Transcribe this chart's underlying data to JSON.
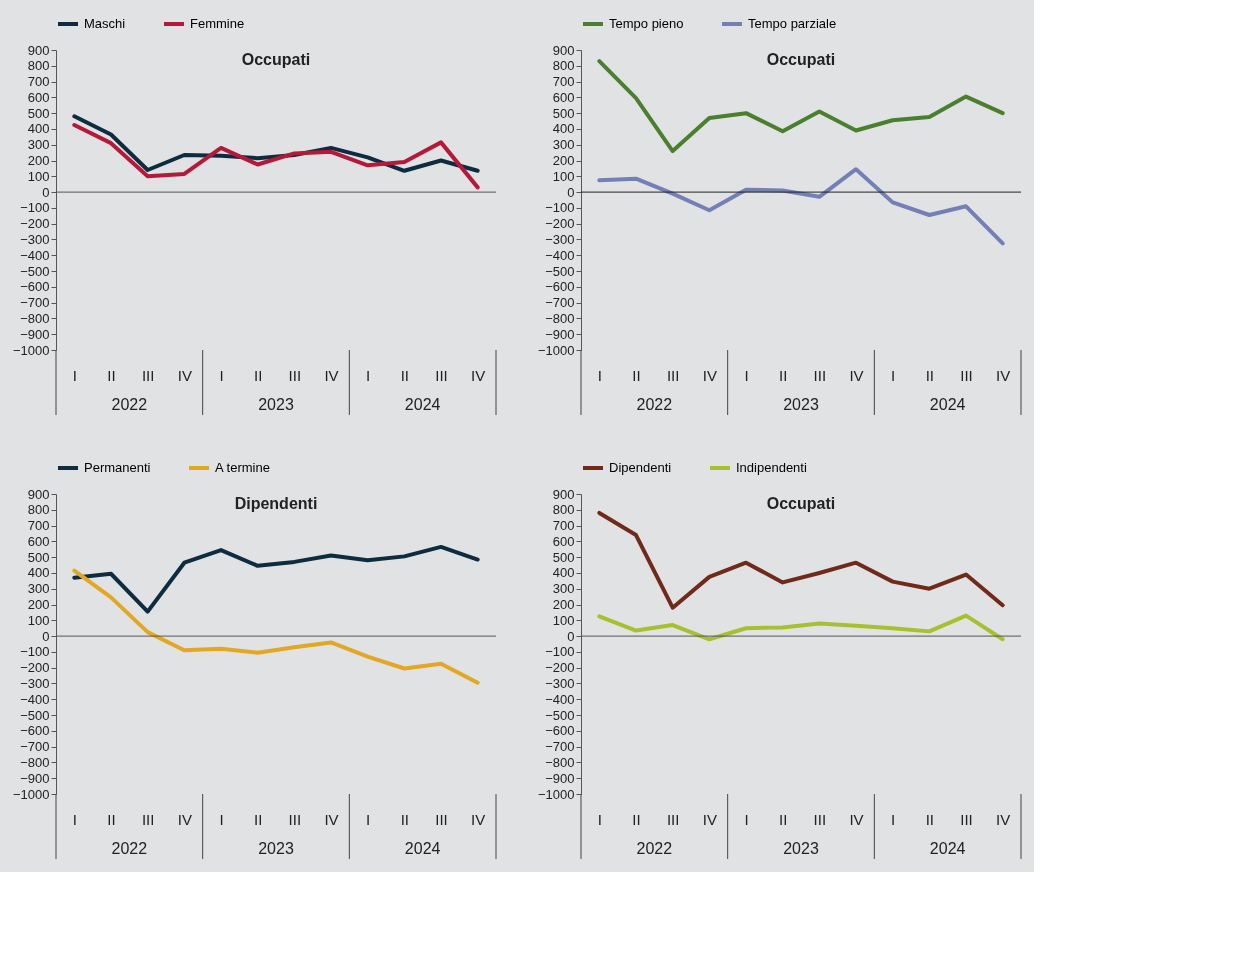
{
  "chart_data": [
    {
      "type": "line",
      "title": "Occupati",
      "categories": [
        "I",
        "II",
        "III",
        "IV",
        "I",
        "II",
        "III",
        "IV",
        "I",
        "II",
        "III",
        "IV"
      ],
      "annotations": [
        "2022",
        "2023",
        "2024"
      ],
      "ylim": [
        -1000,
        900
      ],
      "yticks": [
        -1000,
        -900,
        -800,
        -700,
        -600,
        -500,
        -400,
        -300,
        -200,
        -100,
        0,
        100,
        200,
        300,
        400,
        500,
        600,
        700,
        800,
        900
      ],
      "legend": "top",
      "grid": false,
      "ref_lines": [
        {
          "axis": "y",
          "value": 0,
          "color": "#555555"
        }
      ],
      "series": [
        {
          "name": "Maschi",
          "color": "#0d2c40",
          "values": [
            480,
            365,
            140,
            235,
            230,
            215,
            235,
            280,
            220,
            135,
            200,
            135
          ]
        },
        {
          "name": "Femmine",
          "color": "#b5193a",
          "values": [
            425,
            310,
            100,
            115,
            280,
            175,
            245,
            255,
            170,
            190,
            315,
            30
          ]
        }
      ]
    },
    {
      "type": "line",
      "title": "Occupati",
      "categories": [
        "I",
        "II",
        "III",
        "IV",
        "I",
        "II",
        "III",
        "IV",
        "I",
        "II",
        "III",
        "IV"
      ],
      "annotations": [
        "2022",
        "2023",
        "2024"
      ],
      "ylim": [
        -1000,
        900
      ],
      "yticks": [
        -1000,
        -900,
        -800,
        -700,
        -600,
        -500,
        -400,
        -300,
        -200,
        -100,
        0,
        100,
        200,
        300,
        400,
        500,
        600,
        700,
        800,
        900
      ],
      "legend": "top",
      "grid": false,
      "ref_lines": [
        {
          "axis": "y",
          "value": 0,
          "color": "#222222"
        }
      ],
      "series": [
        {
          "name": "Tempo pieno",
          "color": "#4a7f2e",
          "values": [
            830,
            595,
            260,
            470,
            500,
            385,
            510,
            390,
            455,
            475,
            605,
            500
          ]
        },
        {
          "name": "Tempo parziale",
          "color": "#7380b5",
          "values": [
            75,
            85,
            -10,
            -115,
            15,
            10,
            -30,
            145,
            -65,
            -145,
            -90,
            -325
          ]
        }
      ]
    },
    {
      "type": "line",
      "title": "Dipendenti",
      "categories": [
        "I",
        "II",
        "III",
        "IV",
        "I",
        "II",
        "III",
        "IV",
        "I",
        "II",
        "III",
        "IV"
      ],
      "annotations": [
        "2022",
        "2023",
        "2024"
      ],
      "ylim": [
        -1000,
        900
      ],
      "yticks": [
        -1000,
        -900,
        -800,
        -700,
        -600,
        -500,
        -400,
        -300,
        -200,
        -100,
        0,
        100,
        200,
        300,
        400,
        500,
        600,
        700,
        800,
        900
      ],
      "legend": "top",
      "grid": false,
      "ref_lines": [
        {
          "axis": "y",
          "value": 0,
          "color": "#555555"
        }
      ],
      "series": [
        {
          "name": "Permanenti",
          "color": "#0d2c40",
          "values": [
            370,
            395,
            155,
            465,
            545,
            445,
            470,
            510,
            480,
            505,
            565,
            485
          ]
        },
        {
          "name": "A termine",
          "color": "#e2a824",
          "values": [
            415,
            245,
            25,
            -90,
            -80,
            -105,
            -70,
            -40,
            -130,
            -205,
            -175,
            -295
          ]
        }
      ]
    },
    {
      "type": "line",
      "title": "Occupati",
      "categories": [
        "I",
        "II",
        "III",
        "IV",
        "I",
        "II",
        "III",
        "IV",
        "I",
        "II",
        "III",
        "IV"
      ],
      "annotations": [
        "2022",
        "2023",
        "2024"
      ],
      "ylim": [
        -1000,
        900
      ],
      "yticks": [
        -1000,
        -900,
        -800,
        -700,
        -600,
        -500,
        -400,
        -300,
        -200,
        -100,
        0,
        100,
        200,
        300,
        400,
        500,
        600,
        700,
        800,
        900
      ],
      "legend": "top",
      "grid": false,
      "ref_lines": [
        {
          "axis": "y",
          "value": 0,
          "color": "#555555"
        }
      ],
      "series": [
        {
          "name": "Dipendenti",
          "color": "#6f2a1a",
          "values": [
            780,
            640,
            180,
            375,
            465,
            340,
            400,
            465,
            345,
            300,
            390,
            195
          ]
        },
        {
          "name": "Indipendenti",
          "color": "#a8c030",
          "values": [
            125,
            35,
            70,
            -20,
            50,
            55,
            80,
            65,
            50,
            30,
            130,
            -20
          ]
        }
      ]
    }
  ]
}
